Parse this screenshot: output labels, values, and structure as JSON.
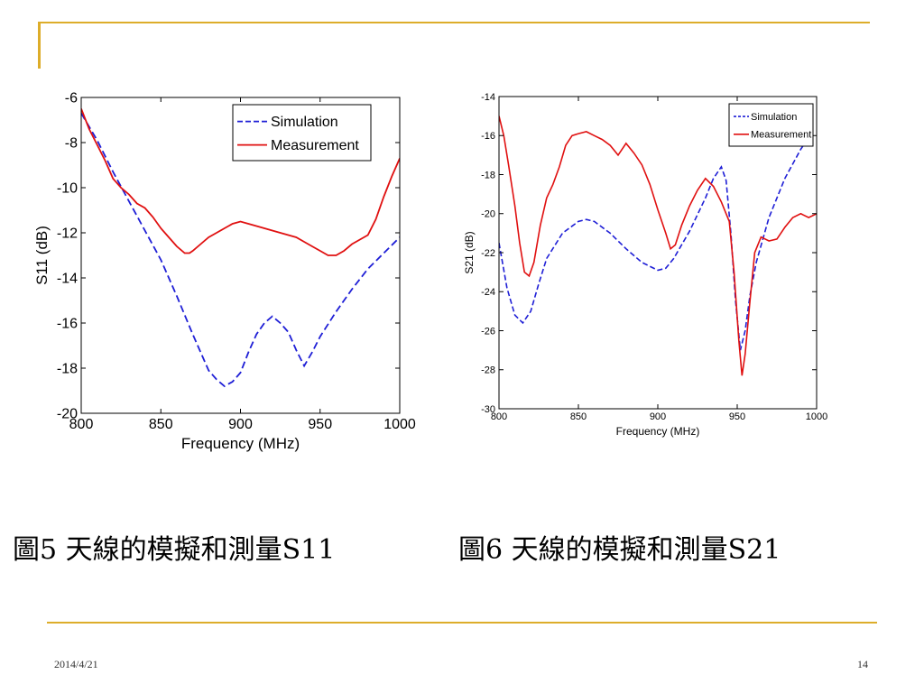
{
  "slide": {
    "caption_left": "圖5 天線的模擬和測量S11",
    "caption_right": "圖6 天線的模擬和測量S21",
    "footer_date": "2014/4/21",
    "footer_page": "14"
  },
  "colors": {
    "accent": "#DDAD2A",
    "simulation": "#1f1fd6",
    "measurement": "#e01010"
  },
  "chart_data": [
    {
      "type": "line",
      "title": "",
      "xlabel": "Frequency (MHz)",
      "ylabel": "S11 (dB)",
      "xlim": [
        800,
        1000
      ],
      "ylim": [
        -20,
        -6
      ],
      "xticks": [
        800,
        850,
        900,
        950,
        1000
      ],
      "yticks": [
        -20,
        -18,
        -16,
        -14,
        -12,
        -10,
        -8,
        -6
      ],
      "grid": false,
      "legend": "top-right",
      "series": [
        {
          "name": "Simulation",
          "style": "dashed",
          "x": [
            800,
            810,
            820,
            830,
            840,
            850,
            860,
            870,
            880,
            885,
            890,
            895,
            900,
            905,
            910,
            915,
            920,
            925,
            930,
            935,
            940,
            945,
            950,
            960,
            970,
            980,
            990,
            1000
          ],
          "y": [
            -6.7,
            -7.9,
            -9.3,
            -10.6,
            -11.9,
            -13.2,
            -14.8,
            -16.5,
            -18.1,
            -18.5,
            -18.8,
            -18.6,
            -18.2,
            -17.3,
            -16.5,
            -16.0,
            -15.7,
            -16.0,
            -16.4,
            -17.2,
            -17.9,
            -17.3,
            -16.6,
            -15.5,
            -14.5,
            -13.6,
            -12.9,
            -12.2
          ]
        },
        {
          "name": "Measurement",
          "style": "solid",
          "x": [
            800,
            805,
            810,
            815,
            820,
            825,
            830,
            835,
            840,
            845,
            850,
            855,
            860,
            865,
            868,
            870,
            875,
            880,
            885,
            890,
            895,
            900,
            905,
            910,
            915,
            920,
            925,
            930,
            935,
            940,
            945,
            950,
            955,
            960,
            965,
            970,
            975,
            980,
            985,
            990,
            995,
            1000
          ],
          "y": [
            -6.5,
            -7.4,
            -8.1,
            -8.8,
            -9.6,
            -10.0,
            -10.3,
            -10.7,
            -10.9,
            -11.3,
            -11.8,
            -12.2,
            -12.6,
            -12.9,
            -12.9,
            -12.8,
            -12.5,
            -12.2,
            -12.0,
            -11.8,
            -11.6,
            -11.5,
            -11.6,
            -11.7,
            -11.8,
            -11.9,
            -12.0,
            -12.1,
            -12.2,
            -12.4,
            -12.6,
            -12.8,
            -13.0,
            -13.0,
            -12.8,
            -12.5,
            -12.3,
            -12.1,
            -11.4,
            -10.4,
            -9.5,
            -8.7
          ]
        }
      ]
    },
    {
      "type": "line",
      "title": "",
      "xlabel": "Frequency (MHz)",
      "ylabel": "S21 (dB)",
      "xlim": [
        800,
        1000
      ],
      "ylim": [
        -30,
        -14
      ],
      "xticks": [
        800,
        850,
        900,
        950,
        1000
      ],
      "yticks": [
        -30,
        -28,
        -26,
        -24,
        -22,
        -20,
        -18,
        -16,
        -14
      ],
      "grid": false,
      "legend": "top-right",
      "series": [
        {
          "name": "Simulation",
          "style": "dashed",
          "x": [
            800,
            805,
            810,
            815,
            820,
            825,
            830,
            840,
            850,
            855,
            860,
            870,
            880,
            890,
            900,
            905,
            910,
            920,
            930,
            935,
            940,
            943,
            946,
            949,
            952,
            955,
            958,
            962,
            970,
            980,
            990,
            995
          ],
          "y": [
            -21.5,
            -23.8,
            -25.2,
            -25.6,
            -25.0,
            -23.6,
            -22.3,
            -21.0,
            -20.4,
            -20.3,
            -20.4,
            -21.0,
            -21.8,
            -22.5,
            -22.9,
            -22.8,
            -22.3,
            -20.9,
            -19.2,
            -18.2,
            -17.6,
            -18.3,
            -21.0,
            -24.5,
            -27.0,
            -26.0,
            -24.2,
            -22.5,
            -20.2,
            -18.2,
            -16.7,
            -16.1
          ]
        },
        {
          "name": "Measurement",
          "style": "solid",
          "x": [
            800,
            803,
            806,
            810,
            813,
            816,
            819,
            822,
            826,
            830,
            834,
            838,
            842,
            846,
            850,
            855,
            860,
            865,
            870,
            875,
            880,
            885,
            890,
            895,
            900,
            905,
            908,
            911,
            915,
            920,
            925,
            930,
            935,
            940,
            945,
            948,
            951,
            953,
            955,
            958,
            961,
            965,
            970,
            975,
            980,
            985,
            990,
            995,
            1000
          ],
          "y": [
            -15.0,
            -16.0,
            -17.5,
            -19.6,
            -21.5,
            -23.0,
            -23.2,
            -22.5,
            -20.6,
            -19.2,
            -18.5,
            -17.6,
            -16.5,
            -16.0,
            -15.9,
            -15.8,
            -16.0,
            -16.2,
            -16.5,
            -17.0,
            -16.4,
            -16.9,
            -17.5,
            -18.5,
            -19.8,
            -21.0,
            -21.8,
            -21.6,
            -20.6,
            -19.6,
            -18.8,
            -18.2,
            -18.6,
            -19.4,
            -20.4,
            -23.0,
            -26.5,
            -28.3,
            -27.2,
            -24.5,
            -22.0,
            -21.2,
            -21.4,
            -21.3,
            -20.7,
            -20.2,
            -20.0,
            -20.2,
            -20.0
          ]
        }
      ]
    }
  ]
}
